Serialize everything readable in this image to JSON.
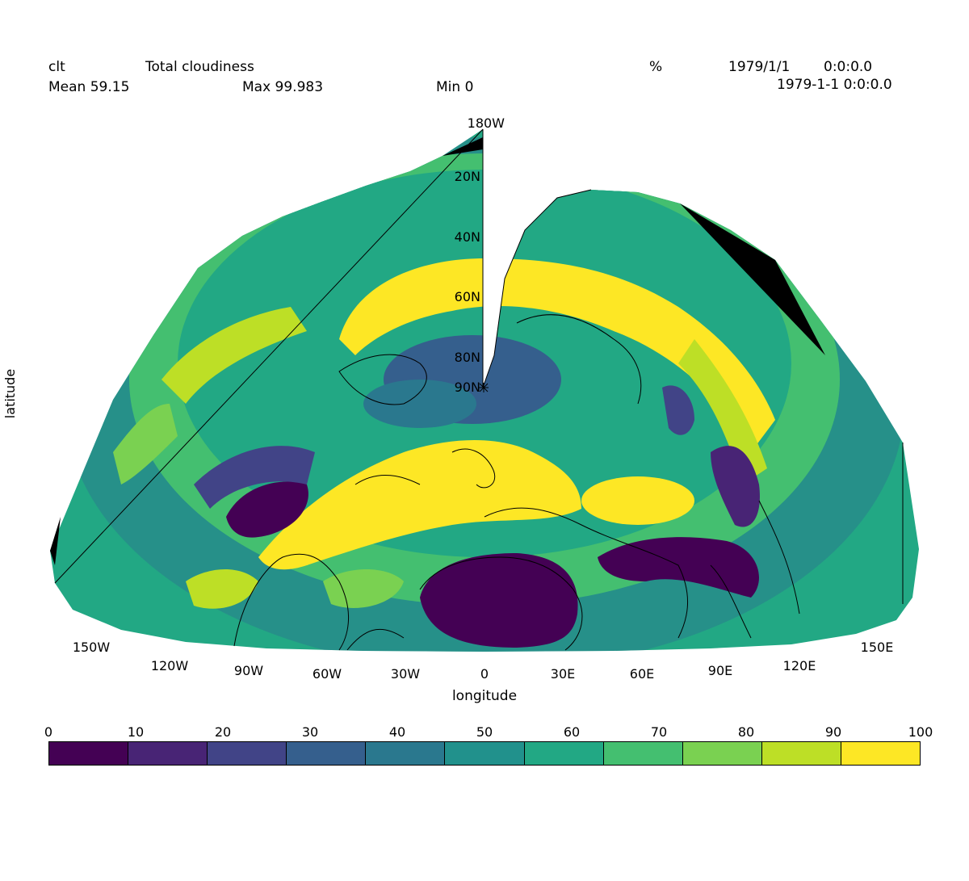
{
  "header": {
    "variable": "clt",
    "long_name": "Total cloudiness",
    "units": "%",
    "date": "1979/1/1",
    "time": "0:0:0.0",
    "datetime": "1979-1-1 0:0:0.0",
    "mean": "Mean 59.15",
    "max": "Max 99.983",
    "min": "Min 0"
  },
  "axes": {
    "xlabel": "longitude",
    "ylabel": "latitude",
    "lon_ticks": [
      "150W",
      "120W",
      "90W",
      "60W",
      "30W",
      "0",
      "30E",
      "60E",
      "90E",
      "120E",
      "150E"
    ],
    "lat_ticks": [
      "180W",
      "20N",
      "40N",
      "60N",
      "80N",
      "90N"
    ]
  },
  "colorbar": {
    "ticks": [
      "0",
      "10",
      "20",
      "30",
      "40",
      "50",
      "60",
      "70",
      "80",
      "90",
      "100"
    ],
    "colors": [
      "#440154",
      "#482475",
      "#414487",
      "#355f8d",
      "#2a788e",
      "#21918c",
      "#22a884",
      "#44bf70",
      "#7ad151",
      "#bddf26",
      "#fde725"
    ]
  },
  "map": {
    "projection": "polar azimuthal (north pole)",
    "field_range": [
      0,
      100
    ]
  }
}
